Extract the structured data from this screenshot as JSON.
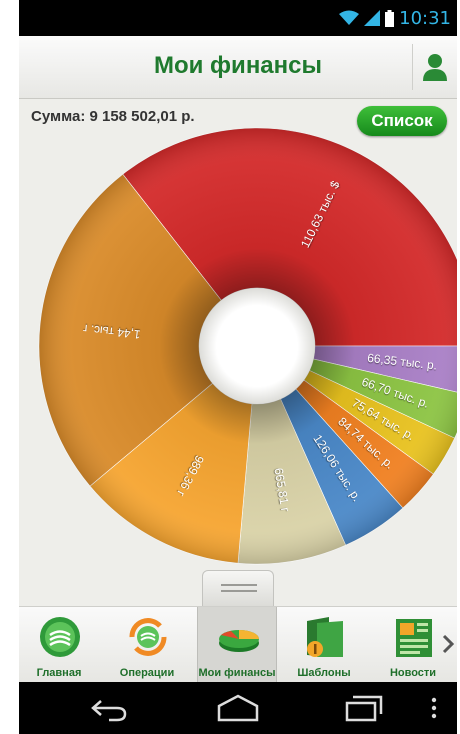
{
  "status_bar": {
    "time": "10:31",
    "icons": [
      "wifi-icon",
      "signal-icon",
      "battery-icon"
    ]
  },
  "header": {
    "title": "Мои финансы"
  },
  "summary": {
    "label": "Сумма: 9 158 502,01 р.",
    "list_button": "Список"
  },
  "chart_data": {
    "type": "pie",
    "donut": true,
    "slices": [
      {
        "label": "110,63 тыс. $",
        "color": "#d32a2a"
      },
      {
        "label": "66,35 тыс. р.",
        "color": "#a97fc6"
      },
      {
        "label": "66,70 тыс. р.",
        "color": "#8cc443"
      },
      {
        "label": "75,64 тыс. р.",
        "color": "#e8c21f"
      },
      {
        "label": "84,74 тыс. р.",
        "color": "#f08021"
      },
      {
        "label": "126,06 тыс. р.",
        "color": "#4a88c8"
      },
      {
        "label": "665,81 г",
        "color": "#d9d2a7"
      },
      {
        "label": "989,36 г",
        "color": "#f6a531"
      },
      {
        "label": "1,44 тыс. г",
        "color": "#d98b2a"
      }
    ]
  },
  "tabs": [
    {
      "label": "Главная",
      "icon": "sberbank-logo-icon"
    },
    {
      "label": "Операции",
      "icon": "operations-icon"
    },
    {
      "label": "Мои финансы",
      "icon": "pie-chart-icon",
      "active": true
    },
    {
      "label": "Шаблоны",
      "icon": "folder-icon"
    },
    {
      "label": "Новости",
      "icon": "news-icon"
    }
  ],
  "nav_bar": {
    "buttons": [
      "back-icon",
      "home-icon",
      "recent-apps-icon",
      "menu-icon"
    ]
  }
}
